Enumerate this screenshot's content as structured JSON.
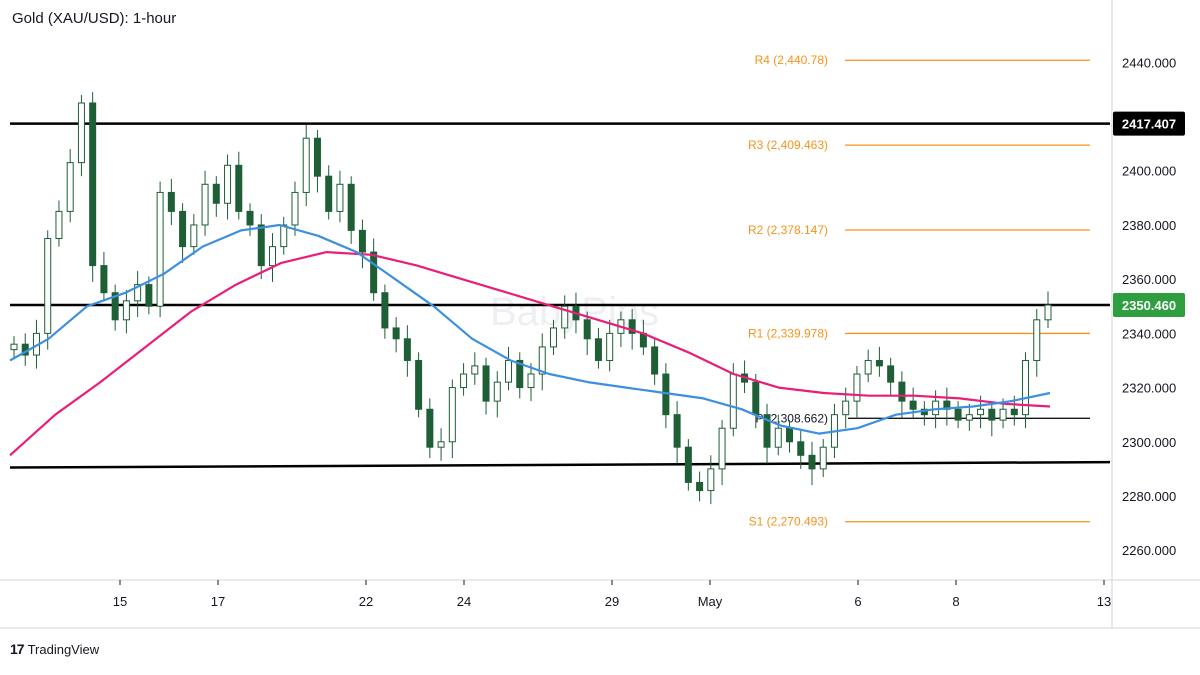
{
  "header": {
    "title": "Gold (XAU/USD): 1-hour"
  },
  "footer": {
    "brand": "TradingView",
    "logo_icon": "tradingview-logo-icon"
  },
  "watermark": "BabyPips",
  "colors": {
    "candle": "#1e5f36",
    "ema_fast": "#3d8fe0",
    "ema_slow": "#e91e78",
    "pivot": "#f7931a",
    "sr_line": "#000000",
    "last_price_badge": "#2e9e3e"
  },
  "chart_data": {
    "type": "candlestick",
    "title": "Gold (XAU/USD): 1-hour",
    "ylim": [
      2249,
      2463
    ],
    "y_ticks": [
      "2260.000",
      "2280.000",
      "2300.000",
      "2320.000",
      "2340.000",
      "2360.000",
      "2380.000",
      "2400.000",
      "2420.000",
      "2440.000"
    ],
    "x_ticks": [
      "15",
      "17",
      "22",
      "24",
      "29",
      "May",
      "6",
      "8",
      "13"
    ],
    "grid": false,
    "price_series_close": [
      2336,
      2332,
      2340,
      2375,
      2385,
      2403,
      2425,
      2365,
      2355,
      2345,
      2352,
      2358,
      2350,
      2392,
      2385,
      2372,
      2380,
      2395,
      2388,
      2402,
      2385,
      2380,
      2365,
      2372,
      2380,
      2392,
      2412,
      2398,
      2385,
      2395,
      2378,
      2370,
      2355,
      2342,
      2338,
      2330,
      2312,
      2298,
      2300,
      2320,
      2325,
      2328,
      2315,
      2322,
      2330,
      2320,
      2325,
      2335,
      2342,
      2350,
      2345,
      2338,
      2330,
      2340,
      2345,
      2340,
      2335,
      2325,
      2310,
      2298,
      2285,
      2282,
      2290,
      2305,
      2325,
      2322,
      2310,
      2298,
      2305,
      2300,
      2295,
      2290,
      2298,
      2310,
      2315,
      2325,
      2330,
      2328,
      2322,
      2315,
      2312,
      2310,
      2315,
      2312,
      2308,
      2310,
      2312,
      2308,
      2312,
      2310,
      2330,
      2345,
      2350.46
    ],
    "ema_fast": [
      2330,
      2338,
      2350,
      2355,
      2362,
      2372,
      2378,
      2380,
      2376,
      2370,
      2360,
      2350,
      2338,
      2330,
      2325,
      2322,
      2320,
      2318,
      2316,
      2312,
      2306,
      2303,
      2305,
      2310,
      2312,
      2313,
      2315,
      2318
    ],
    "ema_slow": [
      2295,
      2310,
      2322,
      2335,
      2348,
      2358,
      2366,
      2370,
      2369,
      2365,
      2360,
      2355,
      2350,
      2345,
      2340,
      2333,
      2325,
      2320,
      2318,
      2317,
      2317,
      2316,
      2314,
      2313
    ],
    "ema_fast_label": "",
    "ema_slow_label": "",
    "horizontal_levels": [
      {
        "label": "R4 (2,440.78)",
        "value": 2440.78,
        "kind": "pivot"
      },
      {
        "label": "R3 (2,409.463)",
        "value": 2409.463,
        "kind": "pivot"
      },
      {
        "label": "R2 (2,378.147)",
        "value": 2378.147,
        "kind": "pivot"
      },
      {
        "label": "R1 (2,339.978)",
        "value": 2339.978,
        "kind": "pivot"
      },
      {
        "label": "P (2,308.662)",
        "value": 2308.662,
        "kind": "pivot-dark"
      },
      {
        "label": "S1 (2,270.493)",
        "value": 2270.493,
        "kind": "pivot"
      },
      {
        "label": "",
        "value": 2417.407,
        "kind": "resistance"
      },
      {
        "label": "",
        "value": 2350.46,
        "kind": "resistance"
      }
    ],
    "support_trendline": {
      "start": 2290.5,
      "end": 2292.5
    },
    "price_badges": [
      {
        "text": "2417.407",
        "value": 2417.407,
        "color": "#000000"
      },
      {
        "text": "2350.460",
        "value": 2350.46,
        "color": "#2e9e3e"
      }
    ]
  }
}
